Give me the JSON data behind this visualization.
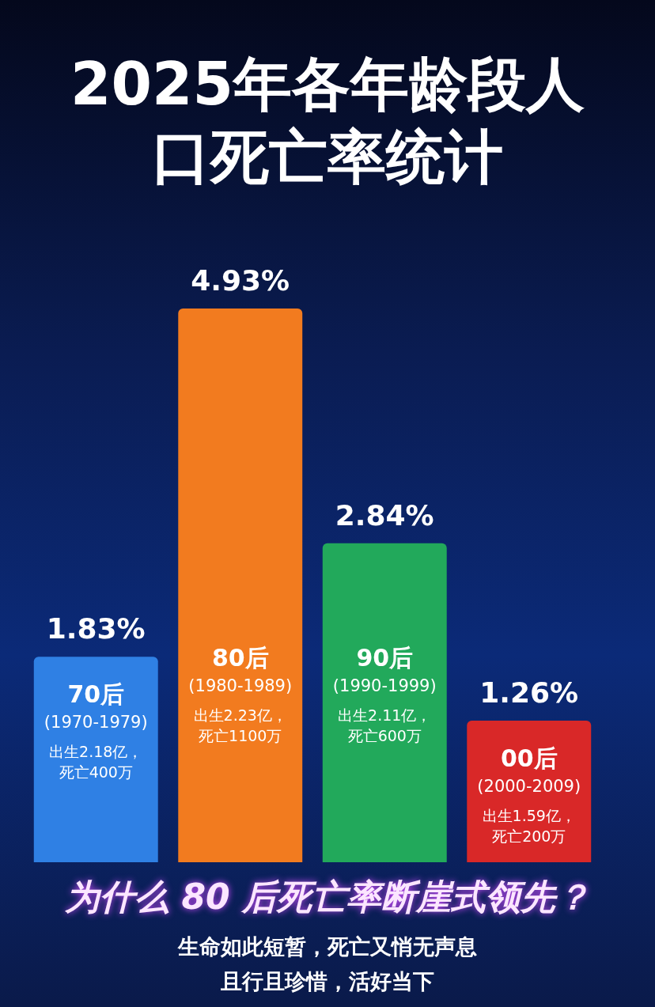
{
  "chart_data": {
    "type": "bar",
    "title": "2025年各年龄段人口死亡率统计",
    "subtitle": "为什么 80 后死亡率断崖式领先？",
    "categories": [
      "70后 (1970-1979)",
      "80后 (1980-1989)",
      "90后 (1990-1999)",
      "00后 (2000-2009)"
    ],
    "values": [
      1.83,
      4.93,
      2.84,
      1.26
    ],
    "colors": [
      "#2f80e4",
      "#f27b1f",
      "#22a95b",
      "#d92828"
    ],
    "value_labels": [
      "1.83%",
      "4.93%",
      "2.84%",
      "1.26%"
    ],
    "annotations": [
      "出生2.18亿，死亡400万",
      "出生2.23亿，死亡1100万",
      "出生2.11亿，死亡600万",
      "出生1.59亿，死亡200万",
      "生命如此短暂，死亡又悄无声息",
      "且行且珍惜，活好当下"
    ],
    "legend": false
  }
}
